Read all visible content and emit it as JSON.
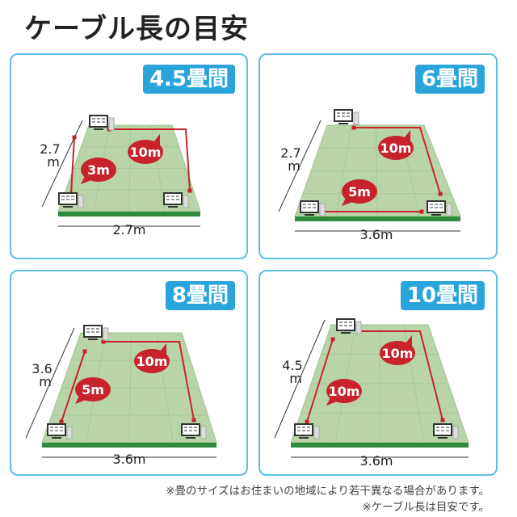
{
  "title": "ケーブル長の目安",
  "colors": {
    "accent": "#2aa5dc",
    "border": "#5bbfe8",
    "cable": "#c8232c",
    "floor": "#b8d4a8",
    "floor_edge": "#2e8b3e"
  },
  "panels": [
    {
      "label": "4.5畳間",
      "depth": "2.7",
      "depth_unit": "m",
      "width": "2.7m",
      "bubbles": [
        "10m",
        "3m"
      ]
    },
    {
      "label": "6畳間",
      "depth": "2.7",
      "depth_unit": "m",
      "width": "3.6m",
      "bubbles": [
        "10m",
        "5m"
      ]
    },
    {
      "label": "8畳間",
      "depth": "3.6",
      "depth_unit": "m",
      "width": "3.6m",
      "bubbles": [
        "10m",
        "5m"
      ]
    },
    {
      "label": "10畳間",
      "depth": "4.5",
      "depth_unit": "m",
      "width": "3.6m",
      "bubbles": [
        "10m",
        "10m"
      ]
    }
  ],
  "notes": [
    "※畳のサイズはお住まいの地域により若干異なる場合があります。",
    "※ケーブル長は目安です。"
  ]
}
